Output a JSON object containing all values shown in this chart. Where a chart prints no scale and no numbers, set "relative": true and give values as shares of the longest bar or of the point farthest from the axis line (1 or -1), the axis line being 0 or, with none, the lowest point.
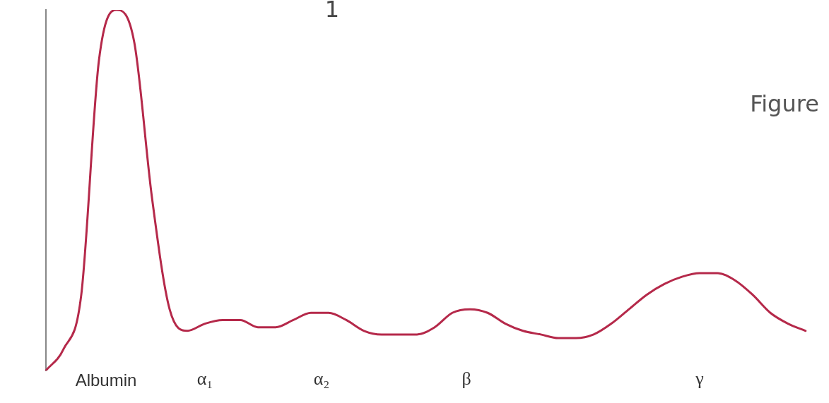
{
  "chart_data": {
    "type": "line",
    "relative": true,
    "color": "#b5294a",
    "marker": "none",
    "line_style": "solid",
    "grid": false,
    "legend": false,
    "tick_labels": false,
    "categories": [
      null,
      null,
      null,
      null,
      null,
      null,
      null,
      null,
      null,
      null,
      null,
      null,
      null,
      null,
      null,
      null,
      null,
      null,
      null,
      null,
      null,
      null,
      null,
      null,
      null,
      null,
      null,
      null,
      null,
      null,
      null,
      null,
      null,
      null,
      null,
      null,
      null,
      null,
      null,
      null,
      null,
      null,
      null,
      null
    ],
    "values": [
      0,
      0.06,
      0.21,
      0.86,
      1,
      0.91,
      0.48,
      0.17,
      0.11,
      0.13,
      0.14,
      0.14,
      0.12,
      0.12,
      0.14,
      0.16,
      0.16,
      0.14,
      0.11,
      0.1,
      0.1,
      0.1,
      0.12,
      0.16,
      0.17,
      0.16,
      0.13,
      0.11,
      0.1,
      0.09,
      0.09,
      0.1,
      0.13,
      0.17,
      0.21,
      0.24,
      0.26,
      0.27,
      0.27,
      0.25,
      0.21,
      0.16,
      0.13,
      0.11
    ],
    "annotations": [
      "1",
      "Figure",
      "Albumin",
      "α₁",
      "α₂",
      "β",
      "γ"
    ]
  }
}
